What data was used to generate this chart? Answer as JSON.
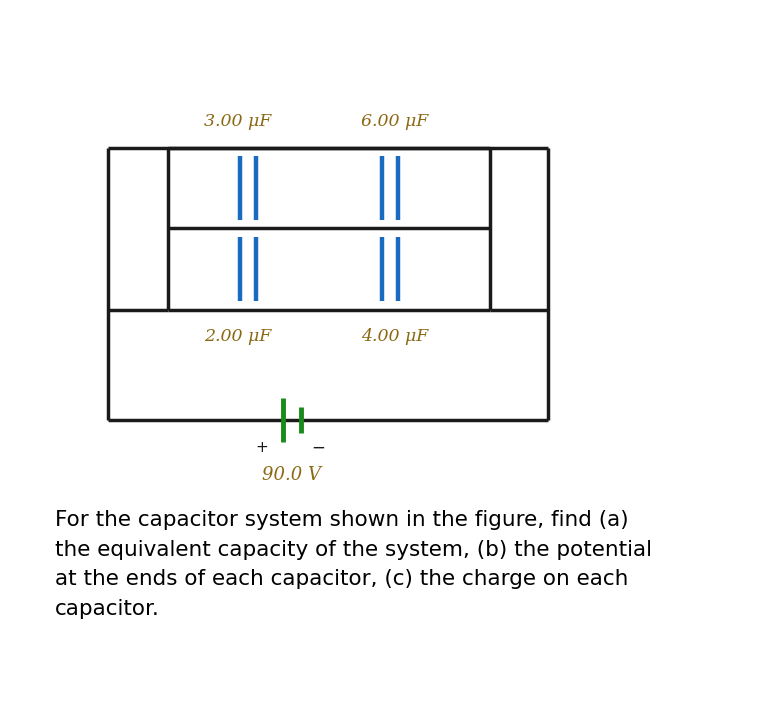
{
  "bg_color": "#ffffff",
  "circuit_line_color": "#1a1a1a",
  "capacitor_color": "#1a6bbf",
  "battery_color": "#1a8a1a",
  "label_color": "#8B6914",
  "text_color": "#000000",
  "label_3uF": "3.00 μF",
  "label_6uF": "6.00 μF",
  "label_2uF": "2.00 μF",
  "label_4uF": "4.00 μF",
  "label_voltage": "90.0 V",
  "problem_text": "For the capacitor system shown in the figure, find (a)\nthe equivalent capacity of the system, (b) the potential\nat the ends of each capacitor, (c) the charge on each\ncapacitor.",
  "lw_circuit": 2.5,
  "lw_cap": 3.2,
  "lw_bat": 3.5,
  "label_fontsize": 12.5,
  "voltage_fontsize": 13,
  "problem_fontsize": 15.5
}
